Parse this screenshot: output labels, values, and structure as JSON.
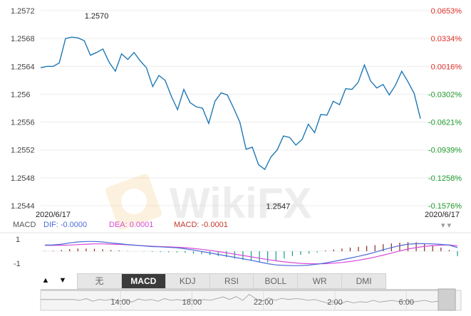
{
  "chart_data": {
    "type": "line",
    "y_ticks_left": [
      "1.2572",
      "1.2568",
      "1.2564",
      "1.256",
      "1.2556",
      "1.2552",
      "1.2548",
      "1.2544"
    ],
    "y_ticks_right": [
      {
        "text": "0.0653%",
        "color": "#e0312b"
      },
      {
        "text": "0.0334%",
        "color": "#e0312b"
      },
      {
        "text": "0.0016%",
        "color": "#e0312b"
      },
      {
        "text": "-0.0302%",
        "color": "#1e9a2d"
      },
      {
        "text": "-0.0621%",
        "color": "#1e9a2d"
      },
      {
        "text": "-0.0939%",
        "color": "#1e9a2d"
      },
      {
        "text": "-0.1258%",
        "color": "#1e9a2d"
      },
      {
        "text": "-0.1576%",
        "color": "#1e9a2d"
      }
    ],
    "ylim": [
      1.2544,
      1.2572
    ],
    "line_color": "#1f78b4",
    "series": [
      {
        "values": [
          1.25638,
          1.2564,
          1.2564,
          1.25645,
          1.2568,
          1.25682,
          1.25681,
          1.25677,
          1.25656,
          1.2566,
          1.25665,
          1.25646,
          1.25633,
          1.25658,
          1.2565,
          1.2566,
          1.25648,
          1.25638,
          1.25611,
          1.25627,
          1.2562,
          1.25597,
          1.25578,
          1.25607,
          1.25588,
          1.25582,
          1.2558,
          1.25558,
          1.2559,
          1.25602,
          1.25599,
          1.2558,
          1.2556,
          1.25521,
          1.25524,
          1.25499,
          1.25492,
          1.2551,
          1.2552,
          1.2554,
          1.25538,
          1.25527,
          1.25535,
          1.25557,
          1.25545,
          1.25571,
          1.2557,
          1.2559,
          1.25585,
          1.25608,
          1.25607,
          1.25617,
          1.25642,
          1.25619,
          1.25609,
          1.25614,
          1.25599,
          1.25613,
          1.25633,
          1.25618,
          1.25601,
          1.25565
        ]
      }
    ],
    "annotations": [
      {
        "text": "1.2570",
        "index": 5,
        "value": 1.257
      },
      {
        "text": "1.2547",
        "index": 36,
        "value": 1.2547
      }
    ],
    "watermark": "WikiFX",
    "date_start": "2020/6/17",
    "date_end": "2020/6/17",
    "macd": {
      "indicator": "MACD",
      "dif_label": "DIF: -0.0000",
      "dea_label": "DEA: 0.0001",
      "macd_label": "MACD: -0.0001",
      "dif_color": "#4b6bd6",
      "dea_color": "#d64bd6",
      "macd_color": "#c0392b",
      "y_ticks": [
        "1",
        "-1"
      ],
      "ylim": [
        -1.4,
        1.4
      ],
      "dif": [
        0.5,
        0.52,
        0.58,
        0.68,
        0.76,
        0.8,
        0.8,
        0.76,
        0.68,
        0.62,
        0.55,
        0.49,
        0.44,
        0.38,
        0.36,
        0.32,
        0.28,
        0.2,
        0.1,
        -0.02,
        -0.14,
        -0.26,
        -0.38,
        -0.5,
        -0.62,
        -0.74,
        -0.88,
        -1.02,
        -1.12,
        -1.16,
        -1.18,
        -1.18,
        -1.14,
        -1.06,
        -0.96,
        -0.84,
        -0.7,
        -0.56,
        -0.42,
        -0.26,
        -0.08,
        0.12,
        0.3,
        0.46,
        0.58,
        0.62,
        0.62,
        0.6,
        0.56,
        0.5,
        0.3
      ],
      "dea": [
        0.48,
        0.48,
        0.49,
        0.51,
        0.54,
        0.58,
        0.6,
        0.6,
        0.58,
        0.56,
        0.53,
        0.49,
        0.45,
        0.41,
        0.38,
        0.36,
        0.33,
        0.29,
        0.23,
        0.16,
        0.07,
        -0.03,
        -0.13,
        -0.24,
        -0.35,
        -0.46,
        -0.57,
        -0.68,
        -0.78,
        -0.87,
        -0.94,
        -0.99,
        -1.02,
        -1.03,
        -1.02,
        -0.98,
        -0.92,
        -0.84,
        -0.74,
        -0.62,
        -0.48,
        -0.32,
        -0.15,
        0.02,
        0.18,
        0.3,
        0.4,
        0.46,
        0.5,
        0.52,
        0.44
      ],
      "hist": [
        0.02,
        0.04,
        0.1,
        0.17,
        0.22,
        0.22,
        0.2,
        0.16,
        0.1,
        0.06,
        0.02,
        -0.01,
        -0.03,
        -0.06,
        -0.07,
        -0.08,
        -0.1,
        -0.13,
        -0.2,
        -0.24,
        -0.32,
        -0.4,
        -0.49,
        -0.6,
        -0.72,
        -0.8,
        -0.87,
        -0.92,
        -0.8,
        -0.6,
        -0.4,
        -0.3,
        -0.2,
        -0.1,
        0.06,
        0.14,
        0.22,
        0.3,
        0.36,
        0.44,
        0.5,
        0.58,
        0.64,
        0.7,
        0.74,
        0.74,
        0.64,
        0.5,
        0.3,
        0.1,
        -0.4
      ]
    },
    "x_ticks": [
      {
        "label": "14:00",
        "pos": 0.19
      },
      {
        "label": "18:00",
        "pos": 0.36
      },
      {
        "label": "22:00",
        "pos": 0.53
      },
      {
        "label": "2:00",
        "pos": 0.7
      },
      {
        "label": "6:00",
        "pos": 0.87
      }
    ],
    "navigator": [
      0.55,
      0.55,
      0.55,
      0.55,
      0.55,
      0.55,
      0.5,
      0.6,
      0.45,
      0.55,
      0.5,
      0.58,
      0.45,
      0.55,
      0.4,
      0.58,
      0.5,
      0.55,
      0.45,
      0.6,
      0.5,
      0.55,
      0.48,
      0.58,
      0.46,
      0.55,
      0.5,
      0.6,
      0.7,
      0.55,
      0.72,
      0.5,
      0.85,
      0.6,
      0.45,
      0.65,
      0.5,
      0.62,
      0.55,
      0.6,
      0.58,
      0.5,
      0.55,
      0.45,
      0.35,
      0.4,
      0.3,
      0.45,
      0.35,
      0.42,
      0.38,
      0.5,
      0.4,
      0.45,
      0.5,
      0.42,
      0.48,
      0.4,
      0.45,
      0.5,
      0.4,
      0.45
    ]
  },
  "nav": {
    "up": "▲",
    "down": "▼"
  },
  "tabs": [
    {
      "label": "无",
      "active": false
    },
    {
      "label": "MACD",
      "active": true
    },
    {
      "label": "KDJ",
      "active": false
    },
    {
      "label": "RSI",
      "active": false
    },
    {
      "label": "BOLL",
      "active": false
    },
    {
      "label": "WR",
      "active": false
    },
    {
      "label": "DMI",
      "active": false
    }
  ]
}
